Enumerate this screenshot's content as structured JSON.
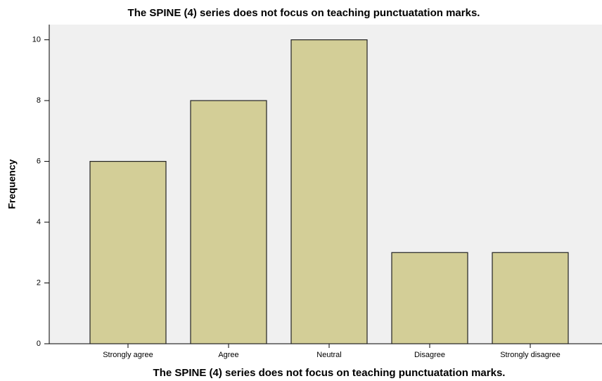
{
  "chart_data": {
    "type": "bar",
    "title": "The SPINE (4) series does not focus on teaching punctuatation marks.",
    "x_label": "The SPINE (4) series does not focus on teaching punctuatation marks.",
    "y_label": "Frequency",
    "categories": [
      "Strongly agree",
      "Agree",
      "Neutral",
      "Disagree",
      "Strongly disagree"
    ],
    "values": [
      6,
      8,
      10,
      3,
      3
    ],
    "color": "#d3ce97",
    "ylim": [
      0,
      10.5
    ],
    "yticks": [
      0,
      2,
      4,
      6,
      8,
      10
    ],
    "grid": false
  }
}
